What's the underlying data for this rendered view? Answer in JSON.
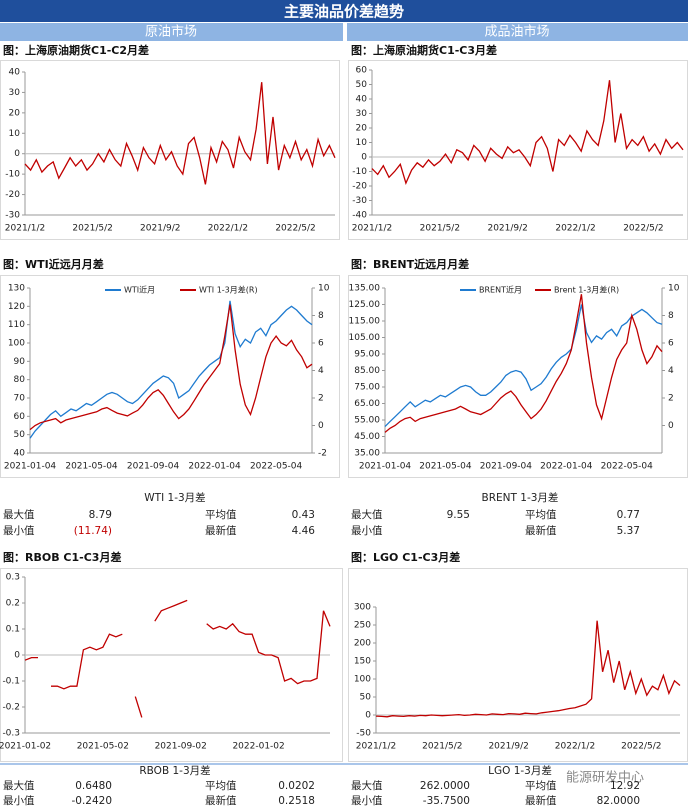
{
  "header": {
    "title": "主要油品价差趋势",
    "left": "原油市场",
    "right": "成品油市场"
  },
  "chart_data": [
    {
      "type": "line",
      "title": "图：上海原油期货C1-C2月差",
      "categories": [
        "2021/1/2",
        null,
        null,
        null,
        null,
        null,
        null,
        null,
        null,
        null,
        null,
        null,
        "2021/5/2",
        null,
        null,
        null,
        null,
        null,
        null,
        null,
        null,
        null,
        null,
        null,
        "2021/9/2",
        null,
        null,
        null,
        null,
        null,
        null,
        null,
        null,
        null,
        null,
        null,
        "2022/1/2",
        null,
        null,
        null,
        null,
        null,
        null,
        null,
        null,
        null,
        null,
        null,
        "2022/5/2",
        null,
        null,
        null,
        null,
        null,
        null,
        null
      ],
      "ylim": [
        -30,
        40
      ],
      "yticks": [
        -30,
        -20,
        -10,
        0,
        10,
        20,
        30,
        40
      ],
      "series": [
        {
          "color": "#c00000",
          "values": [
            -5,
            -8,
            -3,
            -9,
            -6,
            -4,
            -12,
            -7,
            -2,
            -6,
            -3,
            -8,
            -5,
            0,
            -4,
            2,
            -3,
            -6,
            5,
            -1,
            -8,
            3,
            -2,
            -5,
            4,
            -3,
            1,
            -6,
            -10,
            5,
            8,
            -2,
            -15,
            3,
            -4,
            6,
            2,
            -7,
            8,
            1,
            -3,
            12,
            35,
            -5,
            18,
            -8,
            4,
            -2,
            6,
            -3,
            2,
            -6,
            7,
            -1,
            4,
            -2
          ]
        }
      ]
    },
    {
      "type": "line",
      "title": "图：上海原油期货C1-C3月差",
      "categories": [
        "2021/1/2",
        null,
        null,
        null,
        null,
        null,
        null,
        null,
        null,
        null,
        null,
        null,
        "2021/5/2",
        null,
        null,
        null,
        null,
        null,
        null,
        null,
        null,
        null,
        null,
        null,
        "2021/9/2",
        null,
        null,
        null,
        null,
        null,
        null,
        null,
        null,
        null,
        null,
        null,
        "2022/1/2",
        null,
        null,
        null,
        null,
        null,
        null,
        null,
        null,
        null,
        null,
        null,
        "2022/5/2",
        null,
        null,
        null,
        null,
        null,
        null,
        null
      ],
      "ylim": [
        -40,
        60
      ],
      "yticks": [
        -40,
        -30,
        -20,
        -10,
        0,
        10,
        20,
        30,
        40,
        50,
        60
      ],
      "series": [
        {
          "color": "#c00000",
          "values": [
            -8,
            -12,
            -6,
            -14,
            -10,
            -5,
            -18,
            -9,
            -4,
            -7,
            -2,
            -6,
            -3,
            2,
            -4,
            5,
            3,
            -2,
            8,
            4,
            -3,
            6,
            2,
            -1,
            7,
            3,
            5,
            0,
            -6,
            10,
            14,
            6,
            -10,
            12,
            8,
            15,
            10,
            4,
            18,
            12,
            8,
            25,
            53,
            10,
            30,
            6,
            12,
            8,
            14,
            4,
            9,
            2,
            12,
            6,
            10,
            5
          ]
        }
      ]
    },
    {
      "type": "line",
      "title": "图：WTI近远月月差",
      "legend": "top",
      "categories": [
        "2021-01-04",
        null,
        null,
        null,
        null,
        null,
        null,
        null,
        null,
        null,
        null,
        null,
        "2021-05-04",
        null,
        null,
        null,
        null,
        null,
        null,
        null,
        null,
        null,
        null,
        null,
        "2021-09-04",
        null,
        null,
        null,
        null,
        null,
        null,
        null,
        null,
        null,
        null,
        null,
        "2022-01-04",
        null,
        null,
        null,
        null,
        null,
        null,
        null,
        null,
        null,
        null,
        null,
        "2022-05-04",
        null,
        null,
        null,
        null,
        null,
        null,
        null
      ],
      "ylim": [
        40,
        130
      ],
      "yticks": [
        40,
        50,
        60,
        70,
        80,
        90,
        100,
        110,
        120,
        130
      ],
      "y2lim": [
        -2,
        10
      ],
      "y2ticks": [
        -2,
        0,
        2,
        4,
        6,
        8,
        10
      ],
      "series": [
        {
          "name": "WTI近月",
          "color": "#1f7bd0",
          "values": [
            48,
            52,
            55,
            58,
            61,
            63,
            60,
            62,
            64,
            63,
            65,
            67,
            66,
            68,
            70,
            72,
            73,
            72,
            70,
            68,
            67,
            69,
            72,
            75,
            78,
            80,
            82,
            81,
            78,
            70,
            72,
            74,
            78,
            82,
            85,
            88,
            90,
            92,
            100,
            123,
            105,
            98,
            102,
            100,
            106,
            108,
            104,
            110,
            112,
            115,
            118,
            120,
            118,
            115,
            112,
            110
          ]
        },
        {
          "name": "WTI 1-3月差(R)",
          "color": "#c00000",
          "axis": "y2",
          "values": [
            -0.3,
            0,
            0.2,
            0.3,
            0.4,
            0.5,
            0.2,
            0.4,
            0.5,
            0.6,
            0.7,
            0.8,
            0.9,
            1.0,
            1.2,
            1.3,
            1.1,
            0.9,
            0.8,
            0.7,
            0.9,
            1.1,
            1.5,
            2.0,
            2.4,
            2.6,
            2.2,
            1.6,
            1.0,
            0.5,
            0.8,
            1.2,
            1.8,
            2.4,
            3.0,
            3.5,
            4.0,
            4.5,
            6.5,
            8.79,
            5.5,
            3.0,
            1.5,
            0.8,
            2.0,
            3.5,
            5.0,
            6.0,
            6.5,
            6.0,
            5.8,
            6.2,
            5.5,
            5.0,
            4.2,
            4.46
          ]
        }
      ]
    },
    {
      "type": "line",
      "title": "图：BRENT近远月月差",
      "legend": "top",
      "categories": [
        "2021-01-04",
        null,
        null,
        null,
        null,
        null,
        null,
        null,
        null,
        null,
        null,
        null,
        "2021-05-04",
        null,
        null,
        null,
        null,
        null,
        null,
        null,
        null,
        null,
        null,
        null,
        "2021-09-04",
        null,
        null,
        null,
        null,
        null,
        null,
        null,
        null,
        null,
        null,
        null,
        "2022-01-04",
        null,
        null,
        null,
        null,
        null,
        null,
        null,
        null,
        null,
        null,
        null,
        "2022-05-04",
        null,
        null,
        null,
        null,
        null,
        null,
        null
      ],
      "ylim": [
        35,
        135
      ],
      "yticks": [
        {
          "value": 35,
          "label": "35.00"
        },
        {
          "value": 45,
          "label": "45.00"
        },
        {
          "value": 55,
          "label": "55.00"
        },
        {
          "value": 65,
          "label": "65.00"
        },
        {
          "value": 75,
          "label": "75.00"
        },
        {
          "value": 85,
          "label": "85.00"
        },
        {
          "value": 95,
          "label": "95.00"
        },
        {
          "value": 105,
          "label": "105.00"
        },
        {
          "value": 115,
          "label": "115.00"
        },
        {
          "value": 125,
          "label": "125.00"
        },
        {
          "value": 135,
          "label": "135.00"
        }
      ],
      "y2lim": [
        -2,
        10
      ],
      "y2ticks": [
        0,
        2,
        4,
        6,
        8,
        10
      ],
      "series": [
        {
          "name": "BRENT近月",
          "color": "#1f7bd0",
          "values": [
            51,
            54,
            57,
            60,
            63,
            66,
            63,
            65,
            67,
            66,
            68,
            70,
            69,
            71,
            73,
            75,
            76,
            75,
            72,
            70,
            70,
            72,
            75,
            78,
            82,
            84,
            85,
            84,
            80,
            73,
            75,
            77,
            81,
            86,
            90,
            93,
            95,
            98,
            110,
            125,
            108,
            102,
            106,
            104,
            108,
            110,
            106,
            112,
            114,
            118,
            120,
            122,
            120,
            117,
            114,
            113
          ]
        },
        {
          "name": "Brent 1-3月差(R)",
          "color": "#c00000",
          "axis": "y2",
          "values": [
            -0.5,
            -0.2,
            0,
            0.3,
            0.5,
            0.6,
            0.3,
            0.5,
            0.6,
            0.7,
            0.8,
            0.9,
            1.0,
            1.1,
            1.2,
            1.4,
            1.2,
            1.0,
            0.9,
            0.8,
            1.0,
            1.2,
            1.6,
            2.0,
            2.3,
            2.5,
            2.1,
            1.5,
            1.0,
            0.5,
            0.8,
            1.2,
            1.8,
            2.5,
            3.2,
            3.8,
            4.5,
            5.5,
            7.5,
            9.55,
            6.0,
            3.5,
            1.5,
            0.5,
            2.0,
            3.5,
            4.8,
            5.5,
            6.0,
            8.0,
            7.0,
            5.5,
            4.5,
            5.0,
            5.8,
            5.37
          ]
        }
      ]
    },
    {
      "type": "line",
      "title": "图：RBOB C1-C3月差",
      "categories": [
        "2021-01-02",
        null,
        null,
        null,
        null,
        null,
        null,
        null,
        null,
        null,
        null,
        null,
        "2021-05-02",
        null,
        null,
        null,
        null,
        null,
        null,
        null,
        null,
        null,
        null,
        null,
        "2021-09-02",
        null,
        null,
        null,
        null,
        null,
        null,
        null,
        null,
        null,
        null,
        null,
        "2022-01-02",
        null,
        null,
        null,
        null,
        null,
        null,
        null,
        null,
        null,
        null,
        null
      ],
      "ylim": [
        -0.3,
        0.3
      ],
      "yticks": [
        -0.3,
        -0.2,
        -0.1,
        0,
        0.1,
        0.2,
        0.3
      ],
      "series": [
        {
          "color": "#c00000",
          "values": [
            -0.02,
            -0.01,
            -0.01,
            null,
            -0.12,
            -0.12,
            -0.13,
            -0.12,
            -0.12,
            0.02,
            0.03,
            0.02,
            0.03,
            0.08,
            0.07,
            0.08,
            null,
            -0.16,
            -0.24,
            null,
            0.13,
            0.17,
            0.18,
            0.19,
            0.2,
            0.21,
            null,
            null,
            0.12,
            0.1,
            0.11,
            0.1,
            0.12,
            0.09,
            0.08,
            0.08,
            0.01,
            0,
            0,
            -0.01,
            -0.1,
            -0.09,
            -0.11,
            -0.1,
            -0.1,
            -0.09,
            0.17,
            0.11
          ]
        }
      ]
    },
    {
      "type": "line",
      "title": "图：LGO C1-C3月差",
      "categories": [
        "2021/1/2",
        null,
        null,
        null,
        null,
        null,
        null,
        null,
        null,
        null,
        null,
        null,
        "2021/5/2",
        null,
        null,
        null,
        null,
        null,
        null,
        null,
        null,
        null,
        null,
        null,
        "2021/9/2",
        null,
        null,
        null,
        null,
        null,
        null,
        null,
        null,
        null,
        null,
        null,
        "2022/1/2",
        null,
        null,
        null,
        null,
        null,
        null,
        null,
        null,
        null,
        null,
        null,
        "2022/5/2",
        null,
        null,
        null,
        null,
        null,
        null,
        null
      ],
      "ylim": [
        -50,
        300
      ],
      "yticks": [
        -50,
        0,
        50,
        100,
        150,
        200,
        250,
        300
      ],
      "series": [
        {
          "color": "#c00000",
          "values": [
            -3,
            -4,
            -5,
            -2,
            -3,
            -4,
            -2,
            -3,
            -1,
            -2,
            0,
            -1,
            -2,
            -1,
            0,
            1,
            -1,
            0,
            2,
            1,
            0,
            3,
            2,
            1,
            4,
            3,
            2,
            5,
            4,
            3,
            6,
            8,
            10,
            12,
            15,
            18,
            20,
            25,
            30,
            45,
            262,
            120,
            180,
            90,
            150,
            70,
            120,
            60,
            100,
            55,
            80,
            70,
            110,
            60,
            95,
            82
          ]
        }
      ]
    }
  ],
  "stats": [
    {
      "title": "WTI 1-3月差",
      "rows": [
        [
          {
            "label": "最大值",
            "value": "8.79"
          },
          {
            "label": "平均值",
            "value": "0.43"
          }
        ],
        [
          {
            "label": "最小值",
            "value": "(11.74)",
            "color": "#c00000"
          },
          {
            "label": "最新值",
            "value": "4.46"
          }
        ]
      ]
    },
    {
      "title": "BRENT 1-3月差",
      "rows": [
        [
          {
            "label": "最大值",
            "value": "9.55"
          },
          {
            "label": "平均值",
            "value": "0.77"
          }
        ],
        [
          {
            "label": "最小值"
          },
          {
            "label": "最新值",
            "value": "5.37"
          }
        ]
      ]
    },
    {
      "title": "RBOB 1-3月差",
      "rows": [
        [
          {
            "label": "最大值",
            "value": "0.6480"
          },
          {
            "label": "平均值",
            "value": "0.0202"
          }
        ],
        [
          {
            "label": "最小值",
            "value": "-0.2420"
          },
          {
            "label": "最新值",
            "value": "0.2518"
          }
        ]
      ]
    },
    {
      "title": "LGO 1-3月差",
      "rows": [
        [
          {
            "label": "最大值",
            "value": "262.0000"
          },
          {
            "label": "平均值",
            "value": "12.92"
          }
        ],
        [
          {
            "label": "最小值",
            "value": "-35.7500"
          },
          {
            "label": "最新值",
            "value": "82.0000"
          }
        ]
      ]
    }
  ],
  "watermark": "能源研发中心"
}
